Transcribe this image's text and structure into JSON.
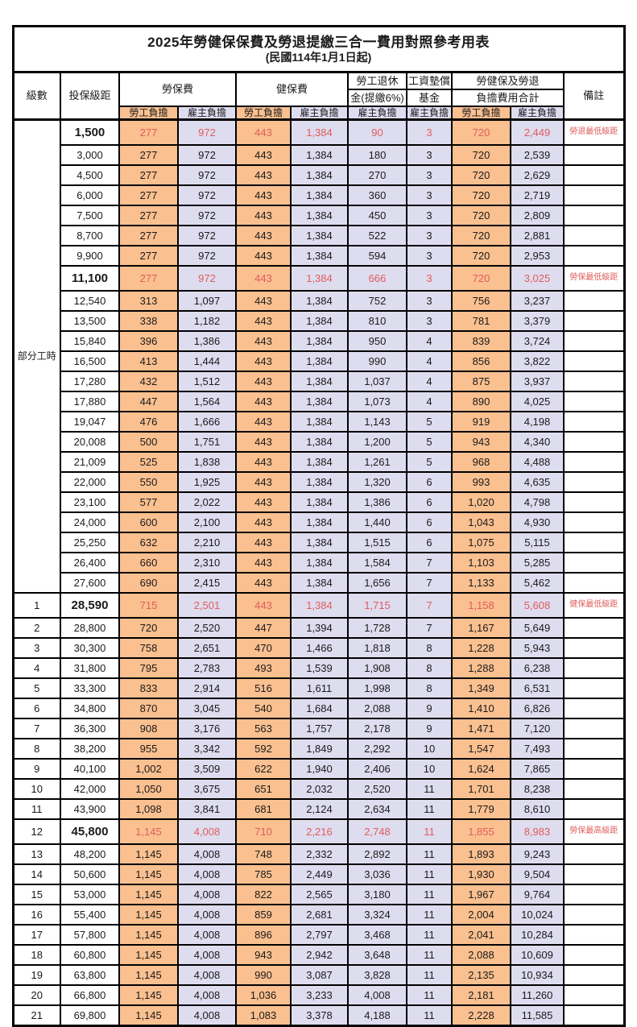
{
  "title": "2025年勞健保保費及勞退提繳三合一費用對照參考用表",
  "subtitle": "(民國114年1月1日起)",
  "header": {
    "level": "級數",
    "bracket": "投保級距",
    "labor_insurance": "勞保費",
    "health_insurance": "健保費",
    "pension_line1": "勞工退休",
    "pension_line2": "金(提繳6%)",
    "wage_fund_line1": "工資墊償",
    "wage_fund_line2": "基金",
    "total_line1": "勞健保及勞退",
    "total_line2": "負擔費用合計",
    "remark": "備註",
    "employee_share": "勞工負擔",
    "employer_share": "雇主負擔"
  },
  "part_time_label": "部分工時",
  "part_time_span": 23,
  "colors": {
    "employee_col_bg": "#fac090",
    "employer_col_bg": "#dedcef",
    "highlight_text": "#e05c5c",
    "border": "#000000"
  },
  "columns_order": [
    "級數",
    "投保級距",
    "勞保費-勞工負擔",
    "勞保費-雇主負擔",
    "健保費-勞工負擔",
    "健保費-雇主負擔",
    "勞工退休金(提繳6%)-雇主負擔",
    "工資墊償基金-雇主負擔",
    "合計-勞工負擔",
    "合計-雇主負擔",
    "備註"
  ],
  "rows": [
    {
      "level": null,
      "bracket": "1,500",
      "values": [
        "277",
        "972",
        "443",
        "1,384",
        "90",
        "3",
        "720",
        "2,449"
      ],
      "remark": "勞退最低級距",
      "highlight": true
    },
    {
      "level": null,
      "bracket": "3,000",
      "values": [
        "277",
        "972",
        "443",
        "1,384",
        "180",
        "3",
        "720",
        "2,539"
      ],
      "remark": "",
      "highlight": false
    },
    {
      "level": null,
      "bracket": "4,500",
      "values": [
        "277",
        "972",
        "443",
        "1,384",
        "270",
        "3",
        "720",
        "2,629"
      ],
      "remark": "",
      "highlight": false
    },
    {
      "level": null,
      "bracket": "6,000",
      "values": [
        "277",
        "972",
        "443",
        "1,384",
        "360",
        "3",
        "720",
        "2,719"
      ],
      "remark": "",
      "highlight": false
    },
    {
      "level": null,
      "bracket": "7,500",
      "values": [
        "277",
        "972",
        "443",
        "1,384",
        "450",
        "3",
        "720",
        "2,809"
      ],
      "remark": "",
      "highlight": false
    },
    {
      "level": null,
      "bracket": "8,700",
      "values": [
        "277",
        "972",
        "443",
        "1,384",
        "522",
        "3",
        "720",
        "2,881"
      ],
      "remark": "",
      "highlight": false
    },
    {
      "level": null,
      "bracket": "9,900",
      "values": [
        "277",
        "972",
        "443",
        "1,384",
        "594",
        "3",
        "720",
        "2,953"
      ],
      "remark": "",
      "highlight": false
    },
    {
      "level": null,
      "bracket": "11,100",
      "values": [
        "277",
        "972",
        "443",
        "1,384",
        "666",
        "3",
        "720",
        "3,025"
      ],
      "remark": "勞保最低級距",
      "highlight": true
    },
    {
      "level": null,
      "bracket": "12,540",
      "values": [
        "313",
        "1,097",
        "443",
        "1,384",
        "752",
        "3",
        "756",
        "3,237"
      ],
      "remark": "",
      "highlight": false
    },
    {
      "level": null,
      "bracket": "13,500",
      "values": [
        "338",
        "1,182",
        "443",
        "1,384",
        "810",
        "3",
        "781",
        "3,379"
      ],
      "remark": "",
      "highlight": false
    },
    {
      "level": null,
      "bracket": "15,840",
      "values": [
        "396",
        "1,386",
        "443",
        "1,384",
        "950",
        "4",
        "839",
        "3,724"
      ],
      "remark": "",
      "highlight": false
    },
    {
      "level": null,
      "bracket": "16,500",
      "values": [
        "413",
        "1,444",
        "443",
        "1,384",
        "990",
        "4",
        "856",
        "3,822"
      ],
      "remark": "",
      "highlight": false
    },
    {
      "level": null,
      "bracket": "17,280",
      "values": [
        "432",
        "1,512",
        "443",
        "1,384",
        "1,037",
        "4",
        "875",
        "3,937"
      ],
      "remark": "",
      "highlight": false
    },
    {
      "level": null,
      "bracket": "17,880",
      "values": [
        "447",
        "1,564",
        "443",
        "1,384",
        "1,073",
        "4",
        "890",
        "4,025"
      ],
      "remark": "",
      "highlight": false
    },
    {
      "level": null,
      "bracket": "19,047",
      "values": [
        "476",
        "1,666",
        "443",
        "1,384",
        "1,143",
        "5",
        "919",
        "4,198"
      ],
      "remark": "",
      "highlight": false
    },
    {
      "level": null,
      "bracket": "20,008",
      "values": [
        "500",
        "1,751",
        "443",
        "1,384",
        "1,200",
        "5",
        "943",
        "4,340"
      ],
      "remark": "",
      "highlight": false
    },
    {
      "level": null,
      "bracket": "21,009",
      "values": [
        "525",
        "1,838",
        "443",
        "1,384",
        "1,261",
        "5",
        "968",
        "4,488"
      ],
      "remark": "",
      "highlight": false
    },
    {
      "level": null,
      "bracket": "22,000",
      "values": [
        "550",
        "1,925",
        "443",
        "1,384",
        "1,320",
        "6",
        "993",
        "4,635"
      ],
      "remark": "",
      "highlight": false
    },
    {
      "level": null,
      "bracket": "23,100",
      "values": [
        "577",
        "2,022",
        "443",
        "1,384",
        "1,386",
        "6",
        "1,020",
        "4,798"
      ],
      "remark": "",
      "highlight": false
    },
    {
      "level": null,
      "bracket": "24,000",
      "values": [
        "600",
        "2,100",
        "443",
        "1,384",
        "1,440",
        "6",
        "1,043",
        "4,930"
      ],
      "remark": "",
      "highlight": false
    },
    {
      "level": null,
      "bracket": "25,250",
      "values": [
        "632",
        "2,210",
        "443",
        "1,384",
        "1,515",
        "6",
        "1,075",
        "5,115"
      ],
      "remark": "",
      "highlight": false
    },
    {
      "level": null,
      "bracket": "26,400",
      "values": [
        "660",
        "2,310",
        "443",
        "1,384",
        "1,584",
        "7",
        "1,103",
        "5,285"
      ],
      "remark": "",
      "highlight": false
    },
    {
      "level": null,
      "bracket": "27,600",
      "values": [
        "690",
        "2,415",
        "443",
        "1,384",
        "1,656",
        "7",
        "1,133",
        "5,462"
      ],
      "remark": "",
      "highlight": false
    },
    {
      "level": "1",
      "bracket": "28,590",
      "values": [
        "715",
        "2,501",
        "443",
        "1,384",
        "1,715",
        "7",
        "1,158",
        "5,608"
      ],
      "remark": "健保最低級距",
      "highlight": true
    },
    {
      "level": "2",
      "bracket": "28,800",
      "values": [
        "720",
        "2,520",
        "447",
        "1,394",
        "1,728",
        "7",
        "1,167",
        "5,649"
      ],
      "remark": "",
      "highlight": false
    },
    {
      "level": "3",
      "bracket": "30,300",
      "values": [
        "758",
        "2,651",
        "470",
        "1,466",
        "1,818",
        "8",
        "1,228",
        "5,943"
      ],
      "remark": "",
      "highlight": false
    },
    {
      "level": "4",
      "bracket": "31,800",
      "values": [
        "795",
        "2,783",
        "493",
        "1,539",
        "1,908",
        "8",
        "1,288",
        "6,238"
      ],
      "remark": "",
      "highlight": false
    },
    {
      "level": "5",
      "bracket": "33,300",
      "values": [
        "833",
        "2,914",
        "516",
        "1,611",
        "1,998",
        "8",
        "1,349",
        "6,531"
      ],
      "remark": "",
      "highlight": false
    },
    {
      "level": "6",
      "bracket": "34,800",
      "values": [
        "870",
        "3,045",
        "540",
        "1,684",
        "2,088",
        "9",
        "1,410",
        "6,826"
      ],
      "remark": "",
      "highlight": false
    },
    {
      "level": "7",
      "bracket": "36,300",
      "values": [
        "908",
        "3,176",
        "563",
        "1,757",
        "2,178",
        "9",
        "1,471",
        "7,120"
      ],
      "remark": "",
      "highlight": false
    },
    {
      "level": "8",
      "bracket": "38,200",
      "values": [
        "955",
        "3,342",
        "592",
        "1,849",
        "2,292",
        "10",
        "1,547",
        "7,493"
      ],
      "remark": "",
      "highlight": false
    },
    {
      "level": "9",
      "bracket": "40,100",
      "values": [
        "1,002",
        "3,509",
        "622",
        "1,940",
        "2,406",
        "10",
        "1,624",
        "7,865"
      ],
      "remark": "",
      "highlight": false
    },
    {
      "level": "10",
      "bracket": "42,000",
      "values": [
        "1,050",
        "3,675",
        "651",
        "2,032",
        "2,520",
        "11",
        "1,701",
        "8,238"
      ],
      "remark": "",
      "highlight": false
    },
    {
      "level": "11",
      "bracket": "43,900",
      "values": [
        "1,098",
        "3,841",
        "681",
        "2,124",
        "2,634",
        "11",
        "1,779",
        "8,610"
      ],
      "remark": "",
      "highlight": false
    },
    {
      "level": "12",
      "bracket": "45,800",
      "values": [
        "1,145",
        "4,008",
        "710",
        "2,216",
        "2,748",
        "11",
        "1,855",
        "8,983"
      ],
      "remark": "勞保最高級距",
      "highlight": true
    },
    {
      "level": "13",
      "bracket": "48,200",
      "values": [
        "1,145",
        "4,008",
        "748",
        "2,332",
        "2,892",
        "11",
        "1,893",
        "9,243"
      ],
      "remark": "",
      "highlight": false
    },
    {
      "level": "14",
      "bracket": "50,600",
      "values": [
        "1,145",
        "4,008",
        "785",
        "2,449",
        "3,036",
        "11",
        "1,930",
        "9,504"
      ],
      "remark": "",
      "highlight": false
    },
    {
      "level": "15",
      "bracket": "53,000",
      "values": [
        "1,145",
        "4,008",
        "822",
        "2,565",
        "3,180",
        "11",
        "1,967",
        "9,764"
      ],
      "remark": "",
      "highlight": false
    },
    {
      "level": "16",
      "bracket": "55,400",
      "values": [
        "1,145",
        "4,008",
        "859",
        "2,681",
        "3,324",
        "11",
        "2,004",
        "10,024"
      ],
      "remark": "",
      "highlight": false
    },
    {
      "level": "17",
      "bracket": "57,800",
      "values": [
        "1,145",
        "4,008",
        "896",
        "2,797",
        "3,468",
        "11",
        "2,041",
        "10,284"
      ],
      "remark": "",
      "highlight": false
    },
    {
      "level": "18",
      "bracket": "60,800",
      "values": [
        "1,145",
        "4,008",
        "943",
        "2,942",
        "3,648",
        "11",
        "2,088",
        "10,609"
      ],
      "remark": "",
      "highlight": false
    },
    {
      "level": "19",
      "bracket": "63,800",
      "values": [
        "1,145",
        "4,008",
        "990",
        "3,087",
        "3,828",
        "11",
        "2,135",
        "10,934"
      ],
      "remark": "",
      "highlight": false
    },
    {
      "level": "20",
      "bracket": "66,800",
      "values": [
        "1,145",
        "4,008",
        "1,036",
        "3,233",
        "4,008",
        "11",
        "2,181",
        "11,260"
      ],
      "remark": "",
      "highlight": false
    },
    {
      "level": "21",
      "bracket": "69,800",
      "values": [
        "1,145",
        "4,008",
        "1,083",
        "3,378",
        "4,188",
        "11",
        "2,228",
        "11,585"
      ],
      "remark": "",
      "highlight": false
    }
  ]
}
